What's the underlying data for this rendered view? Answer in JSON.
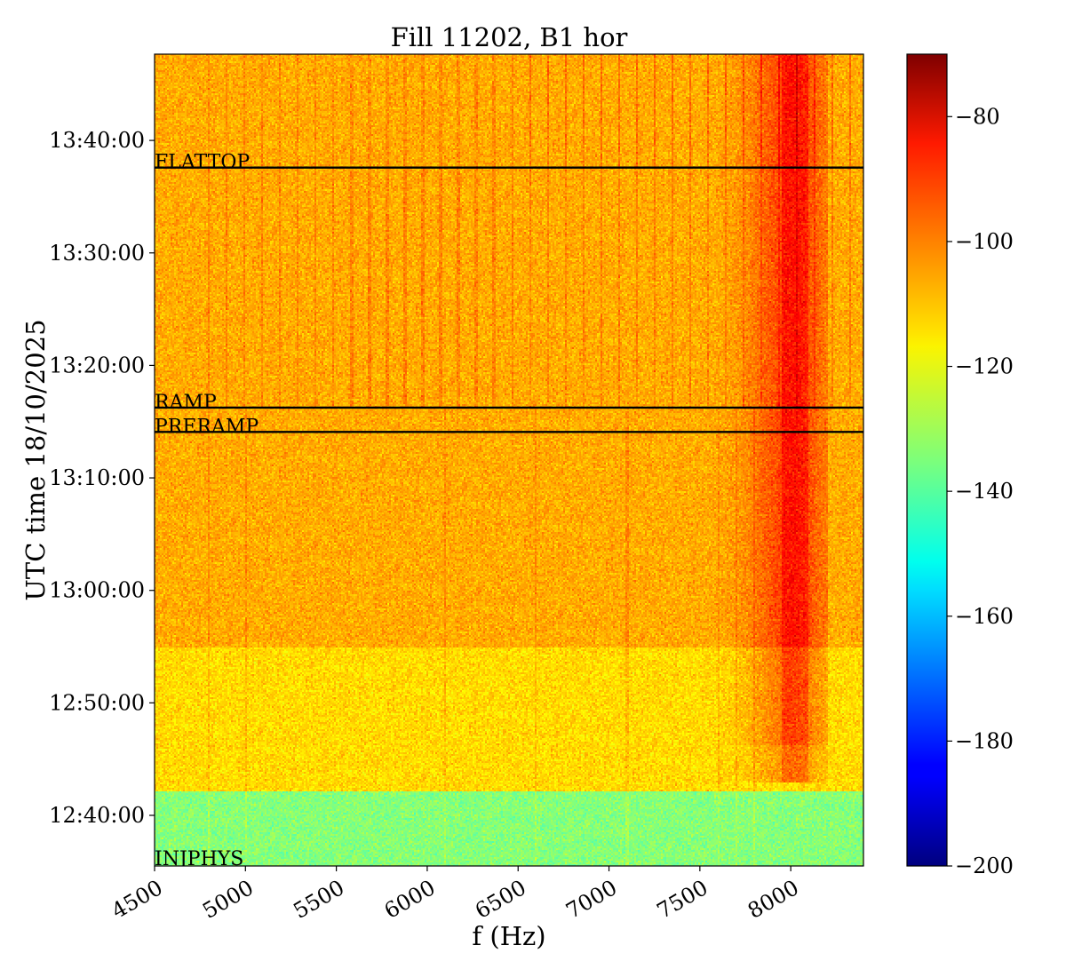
{
  "chart_data": {
    "type": "heatmap",
    "title": "Fill 11202, B1 hor",
    "xlabel": "f (Hz)",
    "ylabel": "UTC time 18/10/2025",
    "xlim": [
      4500,
      8400
    ],
    "ylim": [
      "12:35:30",
      "13:47:40"
    ],
    "x_ticks": [
      4500,
      5000,
      5500,
      6000,
      6500,
      7000,
      7500,
      8000
    ],
    "x_tick_labels": [
      "4500",
      "5000",
      "5500",
      "6000",
      "6500",
      "7000",
      "7500",
      "8000"
    ],
    "y_ticks": [
      "12:40:00",
      "12:50:00",
      "13:00:00",
      "13:10:00",
      "13:20:00",
      "13:30:00",
      "13:40:00"
    ],
    "y_tick_labels": [
      "12:40:00",
      "12:50:00",
      "13:00:00",
      "13:10:00",
      "13:20:00",
      "13:30:00",
      "13:40:00"
    ],
    "colorbar": {
      "colormap": "jet",
      "range": [
        -200,
        -70
      ],
      "ticks": [
        -200,
        -180,
        -160,
        -140,
        -120,
        -100,
        -80
      ],
      "tick_labels": [
        "−200",
        "−180",
        "−160",
        "−140",
        "−120",
        "−100",
        "−80"
      ]
    },
    "annotations": [
      {
        "label": "FLATTOP",
        "time": "13:37:35"
      },
      {
        "label": "RAMP",
        "time": "13:16:15"
      },
      {
        "label": "PRERAMP",
        "time": "13:14:05"
      },
      {
        "label": "INJPHYS",
        "time": "12:35:30"
      }
    ],
    "features": {
      "low_level_region": {
        "until": "12:42:10",
        "level": -140
      },
      "background_level": -110,
      "strong_band_hz": [
        7950,
        8100
      ]
    }
  }
}
